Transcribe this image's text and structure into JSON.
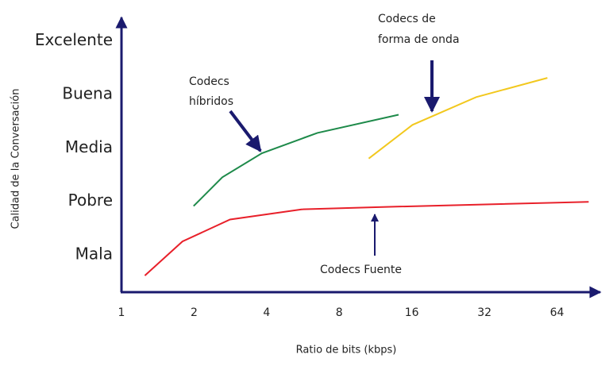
{
  "chart_data": {
    "type": "line",
    "x_label": "Ratio de bits (kbps)",
    "y_label": "Calidad de la Conversación",
    "x_log_base": 2,
    "xlim": [
      1,
      96
    ],
    "xticks": [
      1,
      2,
      4,
      8,
      16,
      32,
      64
    ],
    "ylim": [
      0.3,
      5.5
    ],
    "yticks": [
      {
        "value": 1,
        "label": "Mala"
      },
      {
        "value": 2,
        "label": "Pobre"
      },
      {
        "value": 3,
        "label": "Media"
      },
      {
        "value": 4,
        "label": "Buena"
      },
      {
        "value": 5,
        "label": "Excelente"
      }
    ],
    "grid": false,
    "series": [
      {
        "label": [
          "Codecs Fuente"
        ],
        "color": "#e8202a",
        "x": [
          1.25,
          1.79,
          2.82,
          5.58,
          13.8,
          86.6
        ],
        "values": [
          0.61,
          1.25,
          1.66,
          1.85,
          1.9,
          1.99
        ]
      },
      {
        "label": [
          "Codecs",
          "híbridos"
        ],
        "color": "#1e8a4a",
        "x": [
          1.99,
          2.62,
          3.82,
          6.49,
          14.1
        ],
        "values": [
          1.91,
          2.45,
          2.9,
          3.28,
          3.62
        ]
      },
      {
        "label": [
          "Codecs de",
          "forma de onda"
        ],
        "color": "#f2c81e",
        "x": [
          10.6,
          16.1,
          29.6,
          58.4
        ],
        "values": [
          2.8,
          3.43,
          3.95,
          4.31
        ]
      }
    ]
  }
}
